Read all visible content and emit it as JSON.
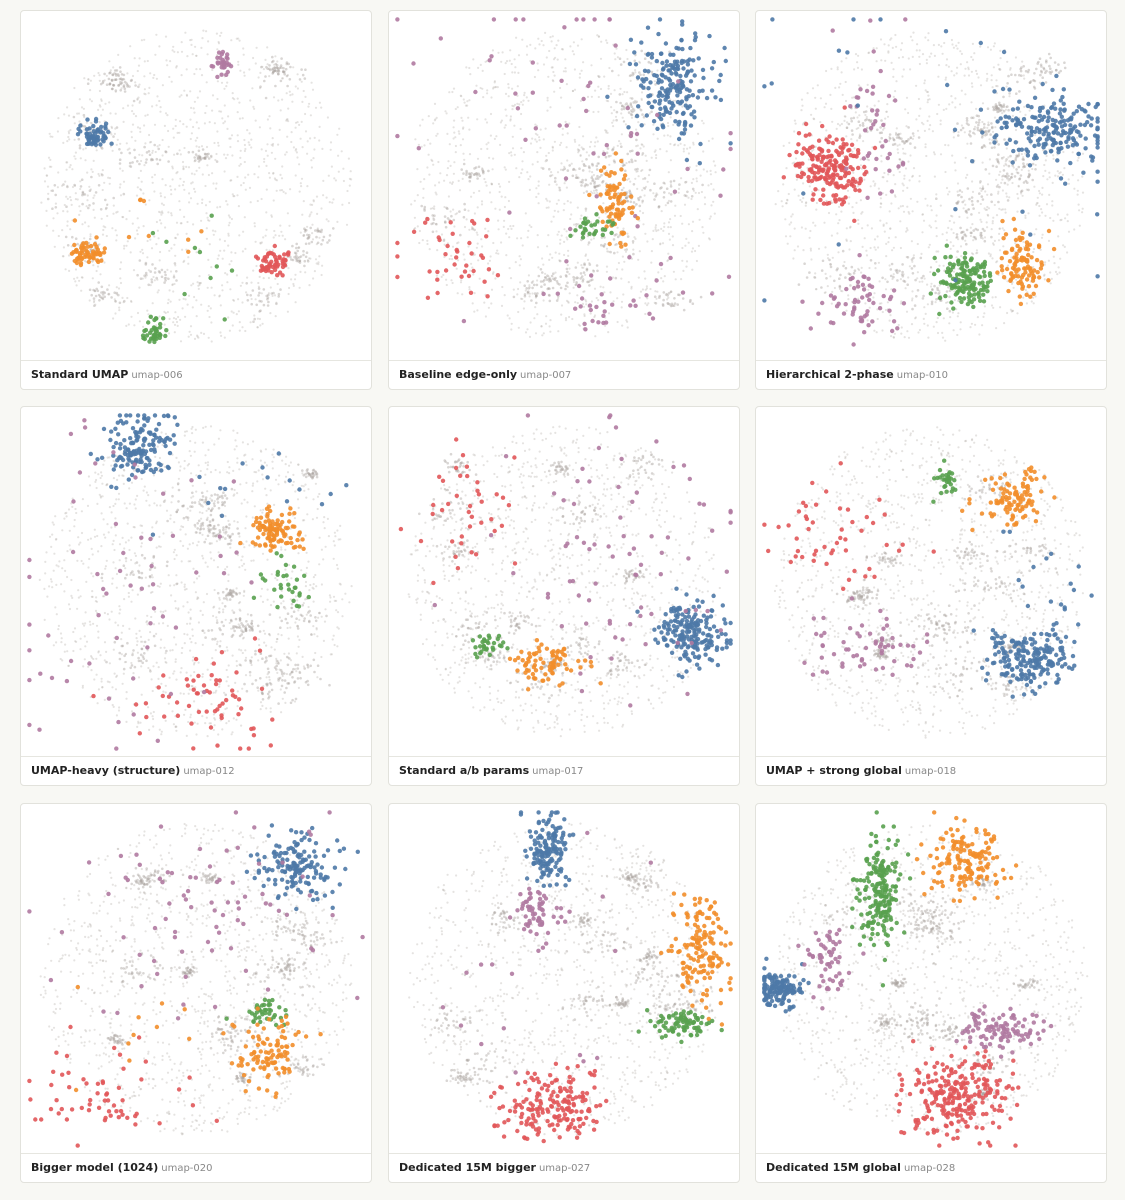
{
  "panels": [
    {
      "title": "Standard UMAP",
      "id": "umap-006"
    },
    {
      "title": "Baseline edge-only",
      "id": "umap-007"
    },
    {
      "title": "Hierarchical 2-phase",
      "id": "umap-010"
    },
    {
      "title": "UMAP-heavy (structure)",
      "id": "umap-012"
    },
    {
      "title": "Standard a/b params",
      "id": "umap-017"
    },
    {
      "title": "UMAP + strong global",
      "id": "umap-018"
    },
    {
      "title": "Bigger model (1024)",
      "id": "umap-020"
    },
    {
      "title": "Dedicated 15M bigger",
      "id": "umap-027"
    },
    {
      "title": "Dedicated 15M global",
      "id": "umap-028"
    }
  ]
}
